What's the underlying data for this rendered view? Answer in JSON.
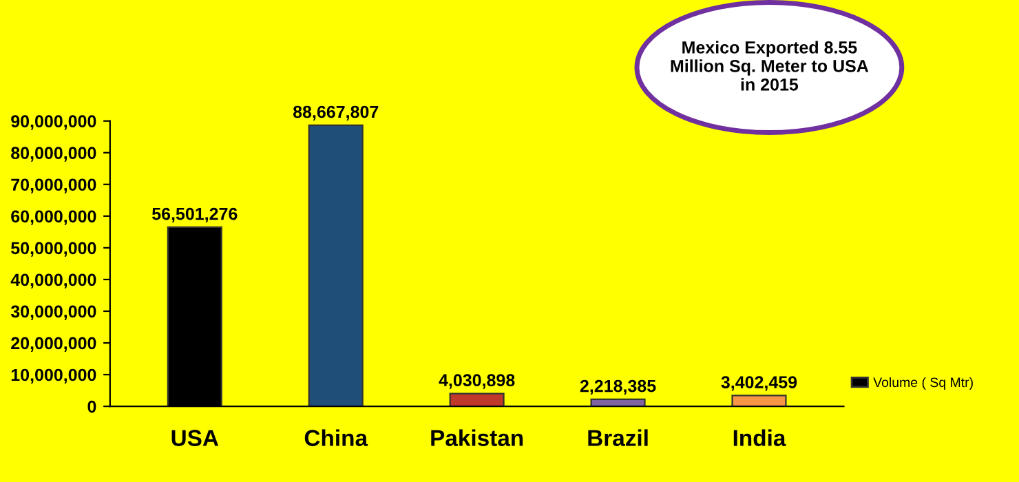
{
  "chart_data": {
    "type": "bar",
    "categories": [
      "USA",
      "China",
      "Pakistan",
      "Brazil",
      "India"
    ],
    "series": [
      {
        "name": "Volume ( Sq Mtr)",
        "values": [
          56501276,
          88667807,
          4030898,
          2218385,
          3402459
        ],
        "colors": [
          "#000000",
          "#1f4e79",
          "#c0392b",
          "#8064a2",
          "#f79646"
        ],
        "value_labels": [
          "56,501,276",
          "88,667,807",
          "4,030,898",
          "2,218,385",
          "3,402,459"
        ]
      }
    ],
    "ylim": [
      0,
      90000000
    ],
    "yticks": [
      {
        "value": 0,
        "label": "0"
      },
      {
        "value": 10000000,
        "label": "10,000,000"
      },
      {
        "value": 20000000,
        "label": "20,000,000"
      },
      {
        "value": 30000000,
        "label": "30,000,000"
      },
      {
        "value": 40000000,
        "label": "40,000,000"
      },
      {
        "value": 50000000,
        "label": "50,000,000"
      },
      {
        "value": 60000000,
        "label": "60,000,000"
      },
      {
        "value": 70000000,
        "label": "70,000,000"
      },
      {
        "value": 80000000,
        "label": "80,000,000"
      },
      {
        "value": 90000000,
        "label": "90,000,000"
      }
    ],
    "annotations": [
      "Mexico Exported 8.55 Million Sq. Meter to USA in 2015"
    ],
    "grid": false,
    "legend": "right"
  }
}
